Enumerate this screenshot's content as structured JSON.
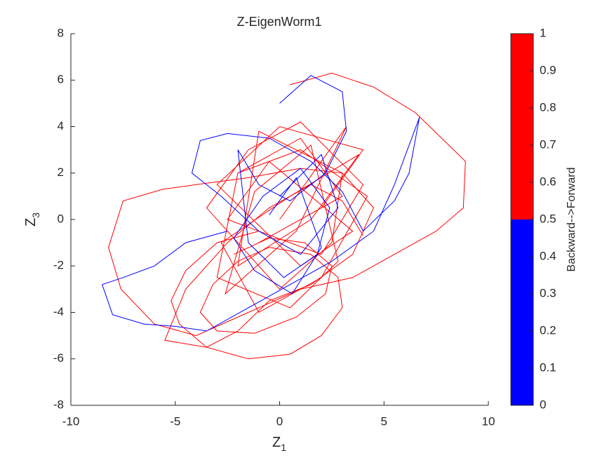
{
  "chart_data": {
    "type": "line",
    "title": "Z-EigenWorm1",
    "xlabel": {
      "text": "Z",
      "subscript": "1"
    },
    "ylabel": {
      "text": "Z",
      "subscript": "3"
    },
    "xlim": [
      -10,
      10
    ],
    "xticks": [
      -10,
      -5,
      0,
      5,
      10
    ],
    "ylim": [
      -8,
      8
    ],
    "yticks": [
      -8,
      -6,
      -4,
      -2,
      0,
      2,
      4,
      6,
      8
    ],
    "series": [
      {
        "color": "#ff0000",
        "x": [
          0.5,
          2.5,
          4.5,
          6.5,
          8.9,
          8.8,
          7.5,
          5.5,
          3.5,
          1,
          -1.5,
          -4,
          -6,
          -7.6,
          -8.2,
          -7.5,
          -5.6,
          -4,
          -1.5,
          1,
          3,
          4.5,
          3.5,
          1.5,
          -0.5,
          -2,
          -3.5,
          -5.5,
          -4.5,
          -2.5,
          -0.5,
          1.5,
          3,
          4
        ],
        "values": [
          5.8,
          6.3,
          5.7,
          4.6,
          2.5,
          0.5,
          -0.5,
          -1.5,
          -2.5,
          -3,
          -4,
          -5,
          -4.5,
          -3,
          -1.2,
          0.8,
          1.3,
          1.5,
          1.8,
          2.2,
          2,
          0.5,
          -1.5,
          -2.8,
          -3.5,
          -4.8,
          -5.5,
          -5.2,
          -3,
          -1,
          0.5,
          1.5,
          0.8,
          -0.7
        ]
      },
      {
        "color": "#ff0000",
        "x": [
          -2,
          1,
          3,
          -1,
          2,
          4,
          0,
          -3,
          1,
          3.5,
          -0.5,
          -2.5,
          2,
          4,
          1,
          -1.5,
          -3.5,
          0,
          2.5,
          3,
          -1,
          -2,
          1.5,
          3.8,
          0.5,
          -2.8,
          -1,
          2,
          4.2,
          1,
          -2,
          -3,
          0.5,
          2.8,
          1.5,
          -1.2,
          -2.6,
          0.8,
          3.2,
          0
        ],
        "values": [
          2,
          3.5,
          1,
          -1,
          0.5,
          3,
          4,
          1.5,
          -2,
          -0.5,
          2.5,
          0,
          -1.5,
          1.5,
          4.2,
          3,
          0.5,
          -3,
          -1,
          2,
          3.8,
          -2,
          0,
          2.8,
          1,
          -1,
          -4,
          -2.5,
          1,
          3,
          2,
          -2.5,
          -3.8,
          -1.8,
          3.2,
          1.2,
          -3.2,
          -0.5,
          4,
          0
        ]
      },
      {
        "color": "#ff0000",
        "x": [
          -1,
          -3,
          -4.5,
          -5.2,
          -4.8,
          -3.5,
          -1.5,
          0.5,
          2,
          3,
          2.8,
          1.5,
          -0.5,
          -2,
          -3.2,
          -3.8,
          -3,
          -1.2,
          0.8,
          2.2,
          2.5,
          1.2,
          -0.5,
          -2.2
        ],
        "values": [
          -0.5,
          -1,
          -2.2,
          -3.5,
          -4.5,
          -5.5,
          -6,
          -5.8,
          -5,
          -3.8,
          -2.5,
          -1.5,
          -1.2,
          -1.8,
          -2.8,
          -4,
          -4.8,
          -4.9,
          -4.2,
          -3.2,
          -2,
          -1,
          -0.8,
          -1.5
        ]
      },
      {
        "color": "#0000ff",
        "x": [
          -2.5,
          -4.5,
          -6,
          -7.5,
          -8.5,
          -8,
          -6.5,
          -5,
          -3.5,
          -1.5,
          0.5,
          2.5,
          4.5,
          5.5,
          6.7,
          6.2,
          5.5,
          4,
          3,
          1.5,
          -0.5,
          -2.5,
          -3.8,
          -4.2,
          -2.8,
          -1,
          1,
          2.8,
          2,
          0
        ],
        "values": [
          -0.5,
          -1,
          -2,
          -2.5,
          -2.8,
          -4.1,
          -4.5,
          -4.6,
          -4.8,
          -3.8,
          -2.8,
          -1.8,
          -0.5,
          1.5,
          4.4,
          2,
          0.8,
          -0.5,
          1.2,
          2.5,
          3.5,
          3.7,
          3.4,
          2,
          1,
          -0.5,
          -1.5,
          0.5,
          2.8,
          1
        ]
      },
      {
        "color": "#0000ff",
        "x": [
          0,
          1.5,
          3,
          3.2,
          2.2,
          0.5,
          -1,
          -2,
          -1.5,
          0.2,
          1.8,
          2.4,
          1,
          -0.8,
          -2.2,
          -1.2,
          0.6,
          2,
          0.8,
          -0.5
        ],
        "values": [
          5,
          6.2,
          5.5,
          3.8,
          2,
          0.8,
          1.5,
          3,
          -1,
          -2.5,
          -1.5,
          0.5,
          2.2,
          1,
          -0.8,
          -2.2,
          -3.2,
          -1.2,
          1.8,
          0.2
        ]
      }
    ],
    "colorbar": {
      "label": "Backward-->Forward",
      "lim": [
        0,
        1
      ],
      "ticks": [
        0,
        0.1,
        0.2,
        0.3,
        0.4,
        0.5,
        0.6,
        0.7,
        0.8,
        0.9,
        1
      ],
      "segments": [
        {
          "from": 0,
          "to": 0.5,
          "color": "#0000ff"
        },
        {
          "from": 0.5,
          "to": 1,
          "color": "#ff0000"
        }
      ]
    }
  }
}
